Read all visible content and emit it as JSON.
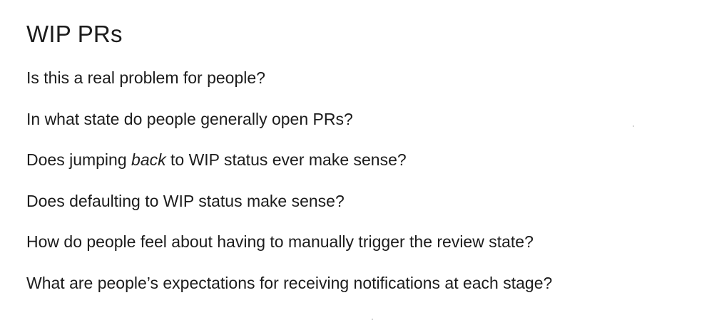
{
  "document": {
    "title": "WIP PRs",
    "questions": [
      {
        "text": "Is this a real problem for people?"
      },
      {
        "text": "In what state do people generally open PRs?"
      },
      {
        "before": "Does jumping ",
        "emphasis": "back",
        "after": " to WIP status ever make sense?"
      },
      {
        "text": "Does defaulting to WIP status make sense?"
      },
      {
        "text": "How do people feel about having to manually trigger the review state?"
      },
      {
        "text": "What are people’s expectations for receiving notifications at each stage?"
      }
    ]
  }
}
